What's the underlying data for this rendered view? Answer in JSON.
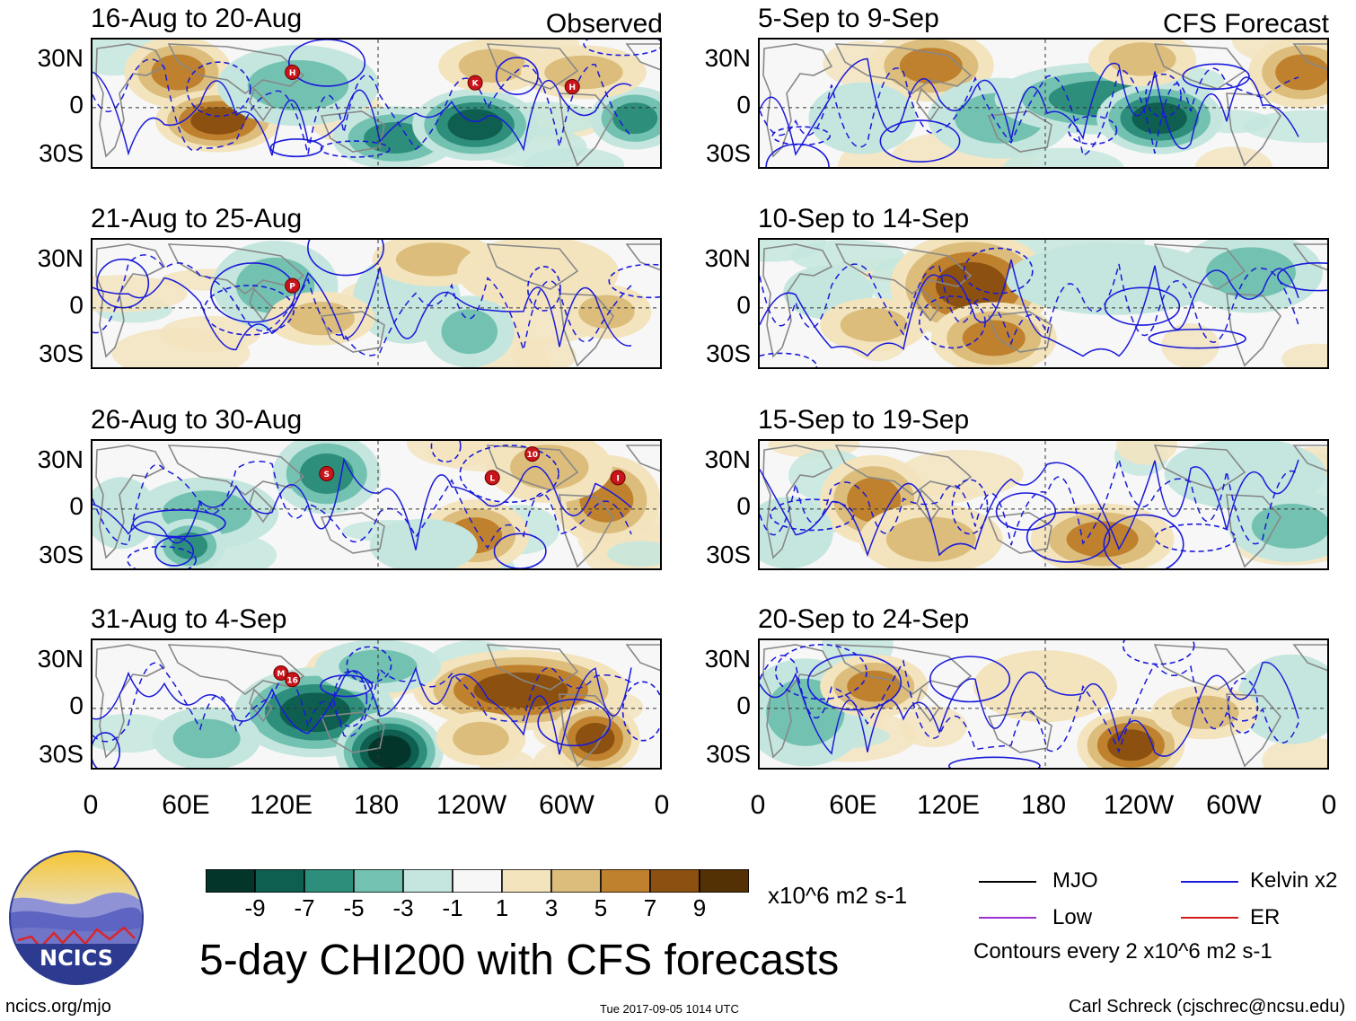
{
  "title": "5-day CHI200 with CFS forecasts",
  "logo_text": "NCICS",
  "site": "ncics.org/mjo",
  "timestamp": "Tue 2017-09-05 1014 UTC",
  "credit": "Carl Schreck (cjschrec@ncsu.edu)",
  "left_column_label": "Observed",
  "right_column_label": "CFS Forecast",
  "panels_left": [
    {
      "title": "16-Aug to 20-Aug",
      "storms": [
        "H",
        "K",
        "H"
      ]
    },
    {
      "title": "21-Aug to 25-Aug",
      "storms": [
        "P"
      ]
    },
    {
      "title": "26-Aug to 30-Aug",
      "storms": [
        "S",
        "L",
        "10",
        "I"
      ]
    },
    {
      "title": "31-Aug to 4-Sep",
      "storms": [
        "M",
        "16"
      ]
    }
  ],
  "panels_right": [
    {
      "title": "5-Sep to 9-Sep"
    },
    {
      "title": "10-Sep to 14-Sep"
    },
    {
      "title": "15-Sep to 19-Sep"
    },
    {
      "title": "20-Sep to 24-Sep"
    }
  ],
  "lat_labels": [
    "30N",
    "0",
    "30S"
  ],
  "lon_labels": [
    "0",
    "60E",
    "120E",
    "180",
    "120W",
    "60W",
    "0"
  ],
  "colorbar": {
    "colors": [
      "#04352a",
      "#0e5f50",
      "#2e8e7c",
      "#73c2b1",
      "#c4e6de",
      "#f7f7f7",
      "#f3e4be",
      "#dcbd7c",
      "#bf812d",
      "#8c5110",
      "#543005"
    ],
    "ticks": [
      "-9",
      "-7",
      "-5",
      "-3",
      "-1",
      "1",
      "3",
      "5",
      "7",
      "9"
    ],
    "units": "x10^6 m2 s-1"
  },
  "legend": {
    "items": [
      {
        "label": "MJO",
        "color": "#000000"
      },
      {
        "label": "Kelvin x2",
        "color": "#1a1adb"
      },
      {
        "label": "Low",
        "color": "#9b30d9"
      },
      {
        "label": "ER",
        "color": "#d41a1a"
      }
    ],
    "note": "Contours every 2 x10^6 m2 s-1"
  }
}
